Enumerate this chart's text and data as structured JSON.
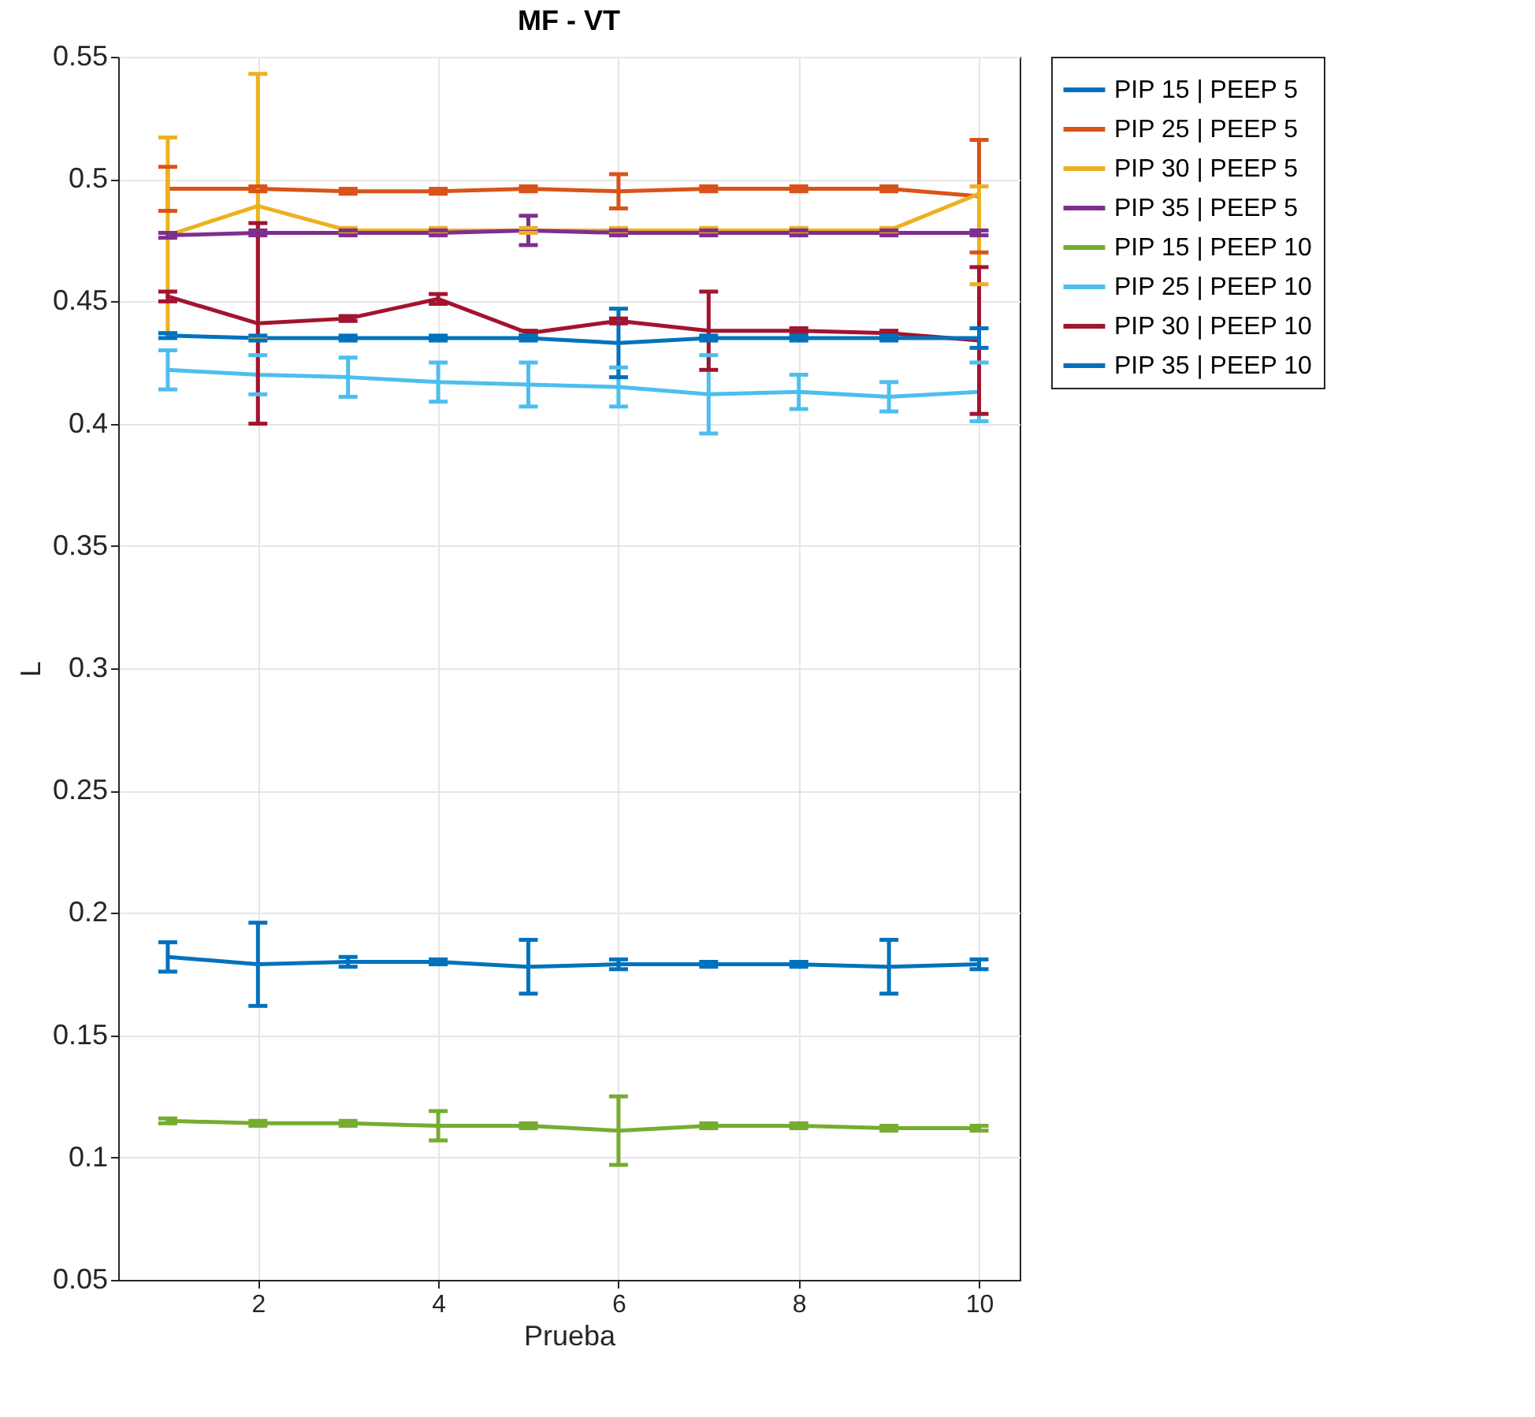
{
  "chart_data": {
    "type": "line",
    "title": "MF - VT",
    "xlabel": "Prueba",
    "ylabel": "L",
    "x": [
      1,
      2,
      3,
      4,
      5,
      6,
      7,
      8,
      9,
      10
    ],
    "xlim": [
      0.45,
      10.45
    ],
    "xticks": [
      2,
      4,
      6,
      8,
      10
    ],
    "ylim": [
      0.05,
      0.55
    ],
    "yticks": [
      0.05,
      0.1,
      0.15,
      0.2,
      0.25,
      0.3,
      0.35,
      0.4,
      0.45,
      0.5,
      0.55
    ],
    "grid": true,
    "legend": "right",
    "line_style": "solid",
    "series": [
      {
        "name": "PIP 15 | PEEP 5",
        "color": "#0072bd",
        "values": [
          0.182,
          0.179,
          0.18,
          0.18,
          0.178,
          0.179,
          0.179,
          0.179,
          0.178,
          0.179
        ],
        "errors": [
          0.006,
          0.017,
          0.002,
          0.001,
          0.011,
          0.002,
          0.001,
          0.001,
          0.011,
          0.002
        ]
      },
      {
        "name": "PIP 25 | PEEP 5",
        "color": "#d95319",
        "values": [
          0.496,
          0.496,
          0.495,
          0.495,
          0.496,
          0.495,
          0.496,
          0.496,
          0.496,
          0.493
        ],
        "errors": [
          0.009,
          0.001,
          0.001,
          0.001,
          0.001,
          0.007,
          0.001,
          0.001,
          0.001,
          0.023
        ]
      },
      {
        "name": "PIP 30 | PEEP 5",
        "color": "#edb120",
        "values": [
          0.477,
          0.489,
          0.479,
          0.479,
          0.479,
          0.479,
          0.479,
          0.479,
          0.479,
          0.494
        ],
        "errors": [
          0.04,
          0.054,
          0.001,
          0.001,
          0.001,
          0.001,
          0.001,
          0.001,
          0.001,
          [
            0.457,
            0.497
          ]
        ]
      },
      {
        "name": "PIP 35 | PEEP 5",
        "color": "#7e2f8e",
        "values": [
          0.477,
          0.478,
          0.478,
          0.478,
          0.479,
          0.478,
          0.478,
          0.478,
          0.478,
          0.478
        ],
        "errors": [
          0.001,
          0.001,
          0.001,
          0.001,
          0.006,
          0.001,
          0.001,
          0.001,
          0.001,
          0.001
        ]
      },
      {
        "name": "PIP 15 | PEEP 10",
        "color": "#77ac30",
        "values": [
          0.115,
          0.114,
          0.114,
          0.113,
          0.113,
          0.111,
          0.113,
          0.113,
          0.112,
          0.112
        ],
        "errors": [
          0.001,
          0.001,
          0.001,
          0.006,
          0.001,
          0.014,
          0.001,
          0.001,
          0.001,
          0.001
        ]
      },
      {
        "name": "PIP 25 | PEEP 10",
        "color": "#4dbeee",
        "values": [
          0.422,
          0.42,
          0.419,
          0.417,
          0.416,
          0.415,
          0.412,
          0.413,
          0.411,
          0.413
        ],
        "errors": [
          0.008,
          0.008,
          0.008,
          0.008,
          0.009,
          0.008,
          0.016,
          0.007,
          0.006,
          0.012
        ]
      },
      {
        "name": "PIP 30 | PEEP 10",
        "color": "#a2142f",
        "values": [
          0.452,
          0.441,
          0.443,
          0.451,
          0.437,
          0.442,
          0.438,
          0.438,
          0.437,
          0.434
        ],
        "errors": [
          0.002,
          0.041,
          0.001,
          0.002,
          0.001,
          0.001,
          0.016,
          0.001,
          0.001,
          0.03
        ]
      },
      {
        "name": "PIP 35 | PEEP 10",
        "color": "#0072bd",
        "values": [
          0.436,
          0.435,
          0.435,
          0.435,
          0.435,
          0.433,
          0.435,
          0.435,
          0.435,
          0.435
        ],
        "errors": [
          0.001,
          0.001,
          0.001,
          0.001,
          0.001,
          0.014,
          0.001,
          0.001,
          0.001,
          0.004
        ]
      }
    ]
  }
}
